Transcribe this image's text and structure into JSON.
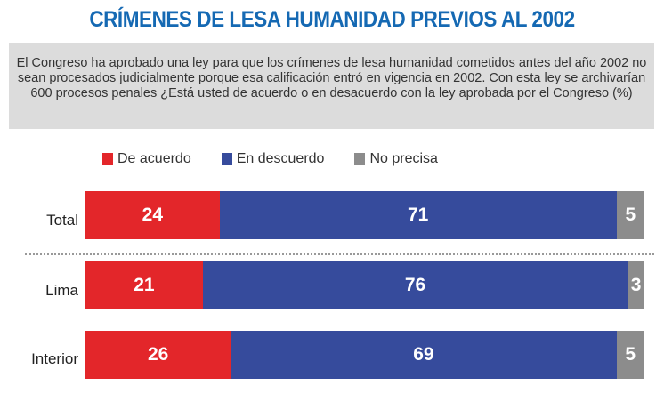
{
  "title": "CRÍMENES DE LESA HUMANIDAD PREVIOS AL 2002",
  "description": "El Congreso ha aprobado una ley para que los crímenes de lesa humanidad cometidos antes del año 2002 no sean procesados judicialmente porque esa calificación entró en vigencia en 2002. Con esta ley se archivarían 600 procesos penales ¿Está usted de acuerdo o en desacuerdo con la ley aprobada por el Congreso (%)",
  "chart_data": {
    "type": "bar",
    "orientation": "horizontal-stacked",
    "title": "CRÍMENES DE LESA HUMANIDAD PREVIOS AL 2002",
    "unit": "%",
    "categories": [
      "Total",
      "Lima",
      "Interior"
    ],
    "series": [
      {
        "name": "De acuerdo",
        "color": "#e3262a",
        "values": [
          24,
          21,
          26
        ]
      },
      {
        "name": "En descuerdo",
        "color": "#364b9c",
        "values": [
          71,
          76,
          69
        ]
      },
      {
        "name": "No precisa",
        "color": "#8c8c8c",
        "values": [
          5,
          3,
          5
        ]
      }
    ],
    "legend": "top"
  }
}
